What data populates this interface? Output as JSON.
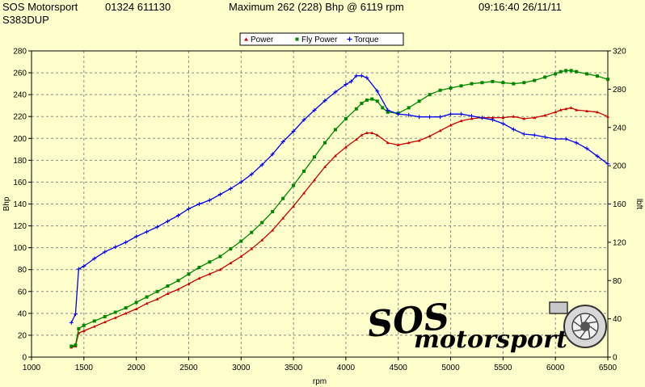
{
  "header": {
    "company": "SOS Motorsport",
    "phone": "01324 611130",
    "maximum": "Maximum 262 (228) Bhp @ 6119 rpm",
    "datetime": "09:16:40 26/11/11",
    "vehicle": "S383DUP"
  },
  "logo": {
    "line1": "SOS",
    "line2": "motorsport"
  },
  "colors": {
    "power": "#cc0000",
    "fly_power": "#008800",
    "torque": "#0000ee",
    "background": "#ffffcc"
  },
  "chart_data": {
    "type": "line",
    "xlabel": "rpm",
    "ylabel": "Bhp",
    "y2label": "lbft",
    "xlim": [
      1000,
      6500
    ],
    "ylim": [
      0,
      280
    ],
    "y2lim": [
      0,
      320
    ],
    "x_ticks": [
      1000,
      1500,
      2000,
      2500,
      3000,
      3500,
      4000,
      4500,
      5000,
      5500,
      6000,
      6500
    ],
    "y_ticks": [
      0,
      20,
      40,
      60,
      80,
      100,
      120,
      140,
      160,
      180,
      200,
      220,
      240,
      260,
      280
    ],
    "y2_ticks": [
      0,
      40,
      80,
      120,
      160,
      200,
      240,
      280,
      320
    ],
    "grid": true,
    "legend_position": "top-center",
    "series": [
      {
        "name": "Power",
        "axis": "left",
        "x": [
          1380,
          1420,
          1450,
          1500,
          1600,
          1700,
          1800,
          1900,
          2000,
          2100,
          2200,
          2300,
          2400,
          2500,
          2600,
          2700,
          2800,
          2900,
          3000,
          3100,
          3200,
          3300,
          3400,
          3500,
          3600,
          3700,
          3800,
          3900,
          4000,
          4100,
          4150,
          4200,
          4250,
          4300,
          4400,
          4500,
          4600,
          4700,
          4800,
          4900,
          5000,
          5100,
          5200,
          5300,
          5400,
          5500,
          5600,
          5700,
          5800,
          5900,
          6000,
          6050,
          6100,
          6150,
          6200,
          6300,
          6400,
          6500
        ],
        "values": [
          9,
          10,
          22,
          24,
          28,
          32,
          36,
          40,
          44,
          49,
          53,
          58,
          62,
          67,
          72,
          76,
          80,
          86,
          92,
          99,
          107,
          116,
          127,
          138,
          150,
          162,
          174,
          184,
          192,
          199,
          203,
          205,
          205,
          203,
          196,
          194,
          196,
          198,
          202,
          207,
          212,
          216,
          218,
          219,
          219,
          219,
          220,
          218,
          219,
          221,
          224,
          226,
          227,
          228,
          226,
          225,
          224,
          220
        ]
      },
      {
        "name": "Fly Power",
        "axis": "left",
        "x": [
          1380,
          1420,
          1450,
          1500,
          1600,
          1700,
          1800,
          1900,
          2000,
          2100,
          2200,
          2300,
          2400,
          2500,
          2600,
          2700,
          2800,
          2900,
          3000,
          3100,
          3200,
          3300,
          3400,
          3500,
          3600,
          3700,
          3800,
          3900,
          4000,
          4100,
          4150,
          4200,
          4250,
          4300,
          4350,
          4400,
          4500,
          4600,
          4700,
          4800,
          4900,
          5000,
          5100,
          5200,
          5300,
          5400,
          5500,
          5600,
          5700,
          5800,
          5900,
          6000,
          6050,
          6100,
          6150,
          6200,
          6300,
          6400,
          6500
        ],
        "values": [
          10,
          11,
          26,
          29,
          33,
          37,
          41,
          45,
          50,
          55,
          60,
          65,
          70,
          76,
          82,
          87,
          92,
          99,
          106,
          114,
          123,
          133,
          145,
          157,
          170,
          183,
          196,
          208,
          218,
          227,
          232,
          235,
          236,
          234,
          228,
          224,
          223,
          228,
          234,
          240,
          244,
          246,
          248,
          250,
          251,
          252,
          251,
          250,
          251,
          253,
          256,
          259,
          261,
          262,
          262,
          261,
          259,
          257,
          254
        ]
      },
      {
        "name": "Torque",
        "axis": "right",
        "x": [
          1380,
          1420,
          1450,
          1500,
          1600,
          1700,
          1800,
          1900,
          2000,
          2100,
          2200,
          2300,
          2400,
          2500,
          2600,
          2700,
          2800,
          2900,
          3000,
          3100,
          3200,
          3300,
          3400,
          3500,
          3600,
          3700,
          3800,
          3900,
          4000,
          4050,
          4100,
          4150,
          4200,
          4300,
          4400,
          4500,
          4600,
          4700,
          4800,
          4900,
          5000,
          5100,
          5200,
          5300,
          5400,
          5500,
          5600,
          5700,
          5800,
          5900,
          6000,
          6100,
          6200,
          6300,
          6400,
          6500
        ],
        "values": [
          36,
          45,
          92,
          95,
          103,
          110,
          115,
          120,
          126,
          131,
          136,
          142,
          148,
          155,
          160,
          164,
          170,
          176,
          183,
          191,
          201,
          212,
          225,
          236,
          248,
          258,
          268,
          277,
          285,
          288,
          294,
          294,
          292,
          278,
          258,
          254,
          253,
          251,
          251,
          251,
          254,
          254,
          252,
          250,
          248,
          244,
          238,
          233,
          232,
          230,
          228,
          228,
          224,
          218,
          210,
          202
        ]
      }
    ]
  }
}
